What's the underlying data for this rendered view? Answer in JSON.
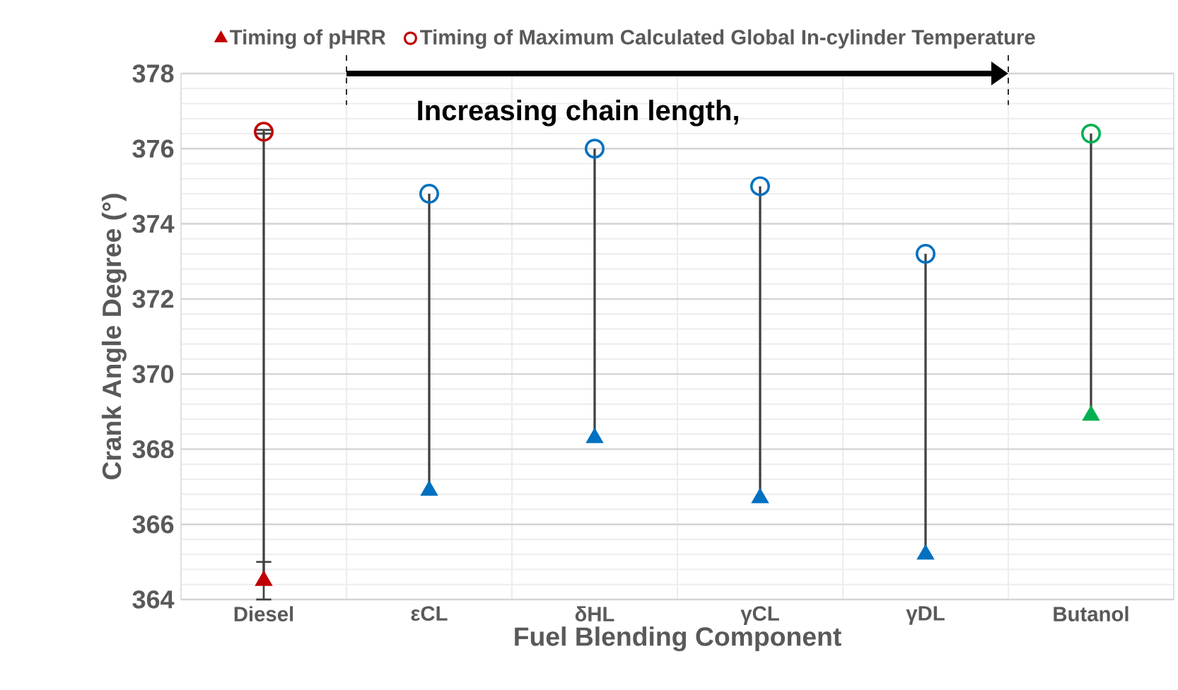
{
  "chart_data": {
    "type": "scatter",
    "xlabel": "Fuel Blending Component",
    "ylabel": "Crank Angle Degree (°)",
    "categories": [
      "Diesel",
      "εCL",
      "δHL",
      "γCL",
      "γDL",
      "Butanol"
    ],
    "ylim": [
      364,
      378
    ],
    "yticks": [
      364,
      366,
      368,
      370,
      372,
      374,
      376,
      378
    ],
    "grid": true,
    "legend": "top",
    "annotations": [
      "Increasing chain length,"
    ],
    "series": [
      {
        "type": "bar",
        "color": "#404040",
        "base": [
          364.5,
          366.9,
          368.3,
          366.7,
          365.2,
          368.9
        ],
        "values": [
          11.95,
          7.9,
          7.7,
          8.3,
          8.0,
          7.5
        ]
      },
      {
        "name": "Timing of pHRR",
        "marker": "triangle",
        "colors": [
          "#c00000",
          "#0070c0",
          "#0070c0",
          "#0070c0",
          "#0070c0",
          "#00b050"
        ],
        "values": [
          364.5,
          366.9,
          368.3,
          366.7,
          365.2,
          368.9
        ],
        "errors": [
          0.5,
          null,
          null,
          null,
          null,
          null
        ]
      },
      {
        "name": "Timing of Maximum Calculated Global In-cylinder Temperature",
        "marker": "circle",
        "colors": [
          "#c00000",
          "#0070c0",
          "#0070c0",
          "#0070c0",
          "#0070c0",
          "#00b050"
        ],
        "values": [
          376.45,
          374.8,
          376.0,
          375.0,
          373.2,
          376.4
        ],
        "errors": [
          0.05,
          null,
          null,
          null,
          null,
          null
        ]
      }
    ]
  }
}
